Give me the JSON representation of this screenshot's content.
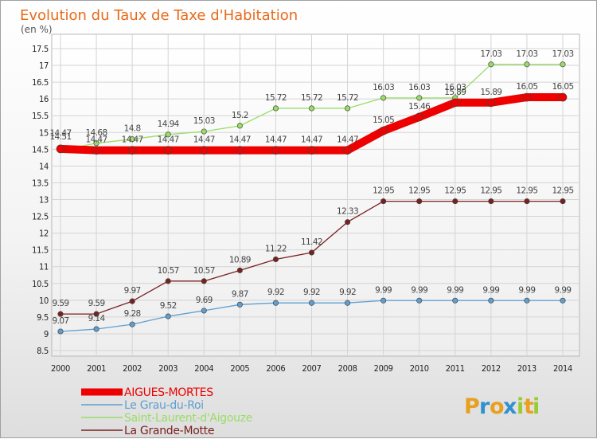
{
  "chart_data": {
    "type": "line",
    "title": "Evolution du Taux de Taxe d'Habitation",
    "subtitle": "(en %)",
    "x": [
      "2000",
      "2001",
      "2002",
      "2003",
      "2004",
      "2005",
      "2006",
      "2007",
      "2008",
      "2009",
      "2010",
      "2011",
      "2012",
      "2013",
      "2014"
    ],
    "ylim": [
      8.5,
      17.5
    ],
    "yticks": [
      "8.5",
      "9",
      "9.5",
      "10",
      "10.5",
      "11",
      "11.5",
      "12",
      "12.5",
      "13",
      "13.5",
      "14",
      "14.5",
      "15",
      "15.5",
      "16",
      "16.5",
      "17",
      "17.5"
    ],
    "grid": true,
    "legend_position": "bottom-left",
    "series": [
      {
        "name": "AIGUES-MORTES",
        "color": "#ee0000",
        "values": [
          14.51,
          14.47,
          14.47,
          14.47,
          14.47,
          14.47,
          14.47,
          14.47,
          14.47,
          15.05,
          15.46,
          15.89,
          15.89,
          16.05,
          16.05
        ],
        "labels": [
          "14.51",
          "14.47",
          "14.47",
          "14.47",
          "14.47",
          "14.47",
          "14.47",
          "14.47",
          "14.47",
          "15.05",
          "15.46",
          "15.89",
          "15.89",
          "16.05",
          "16.05"
        ]
      },
      {
        "name": "Le Grau-du-Roi",
        "color": "#5f9fd0",
        "values": [
          9.07,
          9.14,
          9.28,
          9.52,
          9.69,
          9.87,
          9.92,
          9.92,
          9.92,
          9.99,
          9.99,
          9.99,
          9.99,
          9.99,
          9.99
        ],
        "labels": [
          "9.07",
          "9.14",
          "9.28",
          "9.52",
          "9.69",
          "9.87",
          "9.92",
          "9.92",
          "9.92",
          "9.99",
          "9.99",
          "9.99",
          "9.99",
          "9.99",
          "9.99"
        ]
      },
      {
        "name": "Saint-Laurent-d'Aigouze",
        "color": "#99dd66",
        "values": [
          14.47,
          14.68,
          14.8,
          14.94,
          15.03,
          15.2,
          15.72,
          15.72,
          15.72,
          16.03,
          16.03,
          16.03,
          17.03,
          17.03,
          17.03
        ],
        "labels": [
          "14.47",
          "14.68",
          "14.8",
          "14.94",
          "15.03",
          "15.2",
          "15.72",
          "15.72",
          "15.72",
          "16.03",
          "16.03",
          "16.03",
          "17.03",
          "17.03",
          "17.03"
        ]
      },
      {
        "name": "La Grande-Motte",
        "color": "#7a2020",
        "values": [
          9.59,
          9.59,
          9.97,
          10.57,
          10.57,
          10.89,
          11.22,
          11.42,
          12.33,
          12.95,
          12.95,
          12.95,
          12.95,
          12.95,
          12.95
        ],
        "labels": [
          "9.59",
          "9.59",
          "9.97",
          "10.57",
          "10.57",
          "10.89",
          "11.22",
          "11.42",
          "12.33",
          "12.95",
          "12.95",
          "12.95",
          "12.95",
          "12.95",
          "12.95"
        ]
      }
    ]
  },
  "logo": {
    "letters": [
      "P",
      "r",
      "o",
      "x",
      "i",
      "t",
      "i"
    ],
    "colors": [
      "#e8a020",
      "#3090d0",
      "#e8a020",
      "#3090d0",
      "#99cc33",
      "#e8a020",
      "#99cc33"
    ]
  }
}
